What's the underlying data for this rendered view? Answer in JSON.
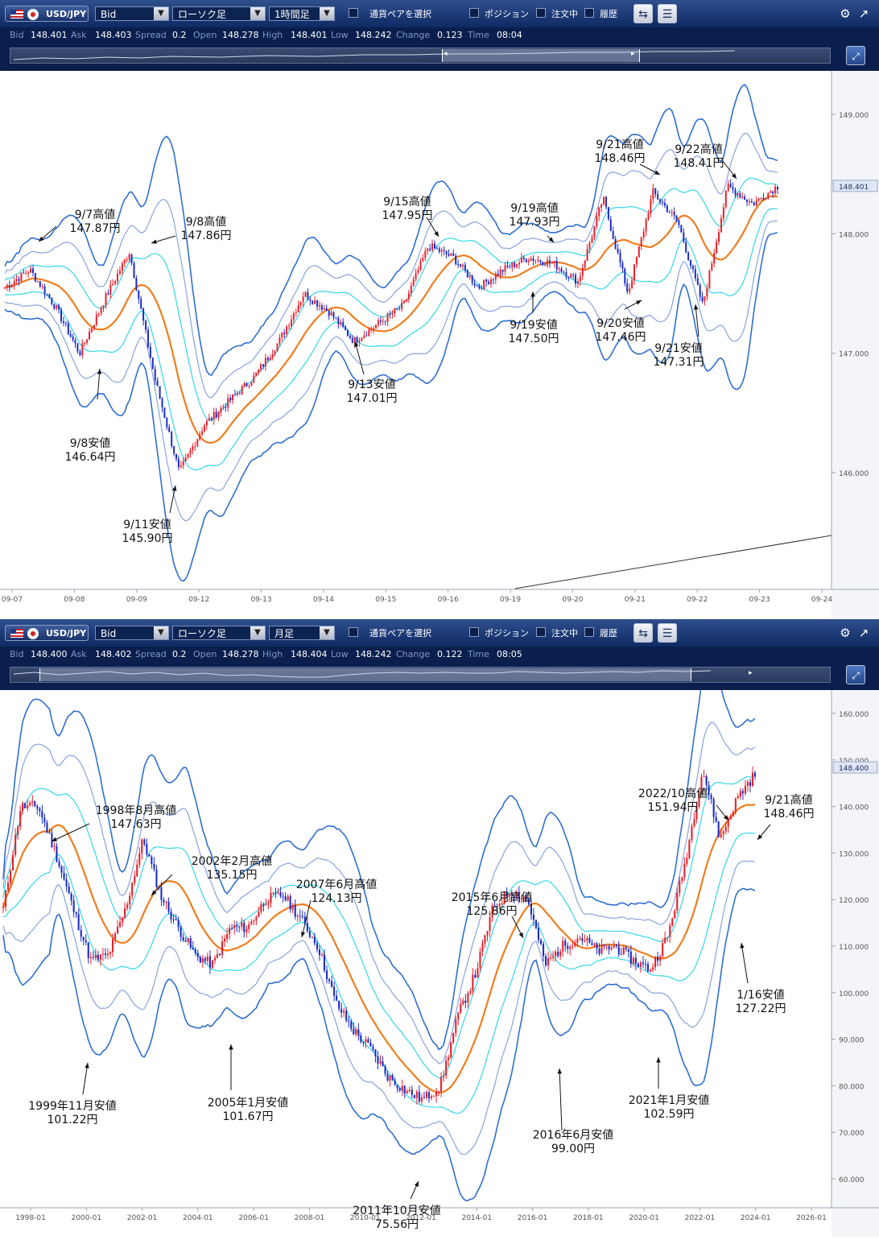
{
  "panels": [
    {
      "id": "hourly",
      "toolbar": {
        "pair": "USD/JPY",
        "price_type": "Bid",
        "chart_type": "ローソク足",
        "timeframe": "1時間足",
        "pair_select_label": "通貨ペアを選択",
        "position_label": "ポジション",
        "orders_label": "注文中",
        "history_label": "履歴"
      },
      "quote": {
        "bid_label": "Bid",
        "bid": "148.401",
        "ask_label": "Ask",
        "ask": "148.403",
        "spread_label": "Spread",
        "spread": "0.2",
        "open_label": "Open",
        "open": "148.278",
        "high_label": "High",
        "high": "148.401",
        "low_label": "Low",
        "low": "148.242",
        "change_label": "Change",
        "change": "0.123",
        "time_label": "Time",
        "time": "08:04"
      },
      "price_axis": {
        "ticks": [
          "149.000",
          "148.000",
          "147.000",
          "146.000"
        ],
        "current": "148.401"
      },
      "time_axis": {
        "ticks": [
          "09-07",
          "09-08",
          "09-09",
          "09-12",
          "09-13",
          "09-14",
          "09-15",
          "09-16",
          "09-19",
          "09-20",
          "09-21",
          "09-22",
          "09-23",
          "09-24"
        ]
      },
      "annotations": [
        {
          "line1": "9/7高値",
          "line2": "147.87円"
        },
        {
          "line1": "9/8高値",
          "line2": "147.86円"
        },
        {
          "line1": "9/8安値",
          "line2": "146.64円"
        },
        {
          "line1": "9/11安値",
          "line2": "145.90円"
        },
        {
          "line1": "9/13安値",
          "line2": "147.01円"
        },
        {
          "line1": "9/15高値",
          "line2": "147.95円"
        },
        {
          "line1": "9/19高値",
          "line2": "147.93円"
        },
        {
          "line1": "9/19安値",
          "line2": "147.50円"
        },
        {
          "line1": "9/20安値",
          "line2": "147.46円"
        },
        {
          "line1": "9/21高値",
          "line2": "148.46円"
        },
        {
          "line1": "9/21安値",
          "line2": "147.31円"
        },
        {
          "line1": "9/22高値",
          "line2": "148.41円"
        }
      ]
    },
    {
      "id": "monthly",
      "toolbar": {
        "pair": "USD/JPY",
        "price_type": "Bid",
        "chart_type": "ローソク足",
        "timeframe": "月足",
        "pair_select_label": "通貨ペアを選択",
        "position_label": "ポジション",
        "orders_label": "注文中",
        "history_label": "履歴"
      },
      "quote": {
        "bid_label": "Bid",
        "bid": "148.400",
        "ask_label": "Ask",
        "ask": "148.402",
        "spread_label": "Spread",
        "spread": "0.2",
        "open_label": "Open",
        "open": "148.278",
        "high_label": "High",
        "high": "148.404",
        "low_label": "Low",
        "low": "148.242",
        "change_label": "Change",
        "change": "0.122",
        "time_label": "Time",
        "time": "08:05"
      },
      "price_axis": {
        "ticks": [
          "160.000",
          "150.000",
          "140.000",
          "130.000",
          "120.000",
          "110.000",
          "100.000",
          "90.000",
          "80.000",
          "70.000",
          "60.000"
        ],
        "current": "148.400"
      },
      "time_axis": {
        "ticks": [
          "1998-01",
          "2000-01",
          "2002-01",
          "2004-01",
          "2006-01",
          "2008-01",
          "2010-01",
          "2012-01",
          "2014-01",
          "2016-01",
          "2018-01",
          "2020-01",
          "2022-01",
          "2024-01",
          "2026-01"
        ]
      },
      "annotations": [
        {
          "line1": "1998年8月高値",
          "line2": "147.63円"
        },
        {
          "line1": "1999年11月安値",
          "line2": "101.22円"
        },
        {
          "line1": "2002年2月高値",
          "line2": "135.15円"
        },
        {
          "line1": "2005年1月安値",
          "line2": "101.67円"
        },
        {
          "line1": "2007年6月高値",
          "line2": "124.13円"
        },
        {
          "line1": "2011年10月安値",
          "line2": "75.56円"
        },
        {
          "line1": "2015年6月高値",
          "line2": "125.86円"
        },
        {
          "line1": "2016年6月安値",
          "line2": "99.00円"
        },
        {
          "line1": "2021年1月安値",
          "line2": "102.59円"
        },
        {
          "line1": "2022/10高値",
          "line2": "151.94円"
        },
        {
          "line1": "1/16安値",
          "line2": "127.22円"
        },
        {
          "line1": "9/21高値",
          "line2": "148.46円"
        }
      ]
    }
  ],
  "colors": {
    "bull": "#e8212b",
    "bear": "#1c2cc8",
    "ma": "#f07d1e",
    "band1": "#35d6e8",
    "band2": "#8aa2de",
    "band3": "#2f6fd0",
    "toolbar": "#1b3775",
    "axis_text": "#555555"
  },
  "icons": [
    "settings-gear-icon",
    "popout-icon",
    "chart-settings-icon",
    "list-icon",
    "expand-icon"
  ]
}
